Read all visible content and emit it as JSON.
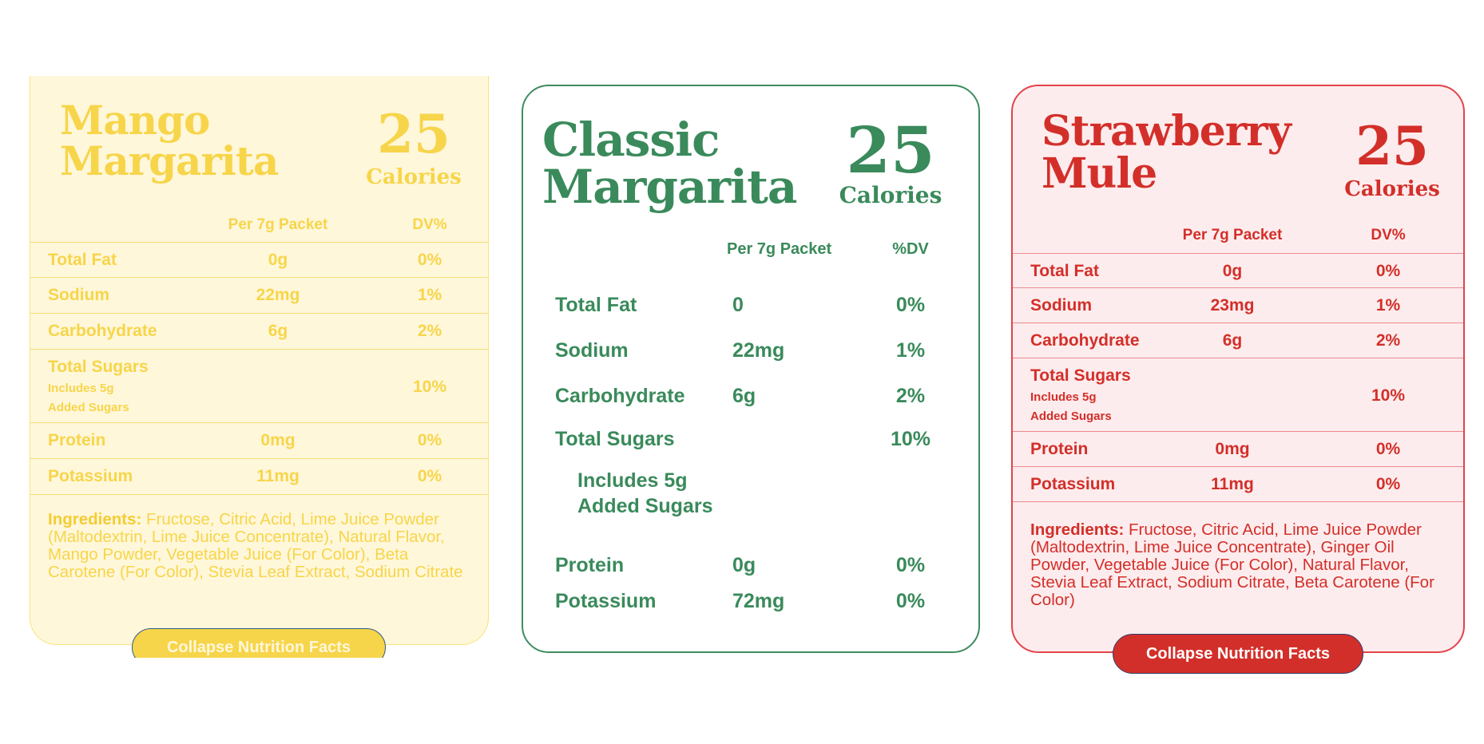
{
  "cards": [
    {
      "title": [
        "Mango",
        "Margarita"
      ],
      "calories": "25",
      "calories_label": "Calories",
      "col_per": "Per 7g Packet",
      "col_dv": "DV%",
      "rows": [
        {
          "label": "Total Fat",
          "value": "0g",
          "dv": "0%"
        },
        {
          "label": "Sodium",
          "value": "22mg",
          "dv": "1%"
        },
        {
          "label": "Carbohydrate",
          "value": "6g",
          "dv": "2%"
        },
        {
          "label": "Total Sugars",
          "sub1": "Includes 5g",
          "sub2": "Added Sugars",
          "value": "",
          "dv": "10%"
        },
        {
          "label": "Protein",
          "value": "0mg",
          "dv": "0%"
        },
        {
          "label": "Potassium",
          "value": "11mg",
          "dv": "0%"
        }
      ],
      "ingredients_label": "Ingredients:",
      "ingredients": " Fructose, Citric Acid, Lime Juice Powder (Maltodextrin, Lime Juice Concentrate), Natural Flavor, Mango Powder, Vegetable Juice (For Color), Beta Carotene (For Color), Stevia Leaf Extract, Sodium Citrate",
      "button": "Collapse Nutrition Facts"
    },
    {
      "title": [
        "Classic",
        "Margarita"
      ],
      "calories": "25",
      "calories_label": "Calories",
      "col_per": "Per 7g Packet",
      "col_dv": "%DV",
      "rows": [
        {
          "label": "Total Fat",
          "value": "0",
          "dv": "0%"
        },
        {
          "label": "Sodium",
          "value": "22mg",
          "dv": "1%"
        },
        {
          "label": "Carbohydrate",
          "value": "6g",
          "dv": "2%"
        },
        {
          "label": "Total Sugars",
          "value": "",
          "dv": "10%"
        },
        {
          "label": "Includes 5g",
          "label2": "Added Sugars"
        },
        {
          "label": "Protein",
          "value": "0g",
          "dv": "0%"
        },
        {
          "label": "Potassium",
          "value": "72mg",
          "dv": "0%"
        }
      ]
    },
    {
      "title": [
        "Strawberry",
        "Mule"
      ],
      "calories": "25",
      "calories_label": "Calories",
      "col_per": "Per 7g Packet",
      "col_dv": "DV%",
      "rows": [
        {
          "label": "Total Fat",
          "value": "0g",
          "dv": "0%"
        },
        {
          "label": "Sodium",
          "value": "23mg",
          "dv": "1%"
        },
        {
          "label": "Carbohydrate",
          "value": "6g",
          "dv": "2%"
        },
        {
          "label": "Total Sugars",
          "sub1": "Includes 5g",
          "sub2": "Added Sugars",
          "value": "",
          "dv": "10%"
        },
        {
          "label": "Protein",
          "value": "0mg",
          "dv": "0%"
        },
        {
          "label": "Potassium",
          "value": "11mg",
          "dv": "0%"
        }
      ],
      "ingredients_label": "Ingredients:",
      "ingredients": " Fructose, Citric Acid, Lime Juice Powder (Maltodextrin, Lime Juice Concentrate), Ginger Oil Powder, Vegetable Juice (For Color), Natural Flavor, Stevia Leaf Extract, Sodium Citrate, Beta Carotene (For Color)",
      "button": "Collapse Nutrition Facts"
    }
  ],
  "colors": {
    "mango_text": "#f7d54a",
    "mango_bg": "#fff7da",
    "mango_button": "#f7d54a",
    "classic_text": "#3a8a5b",
    "straw_text": "#d32f2a",
    "straw_bg": "#fdeced",
    "straw_button": "#d32f2a"
  }
}
